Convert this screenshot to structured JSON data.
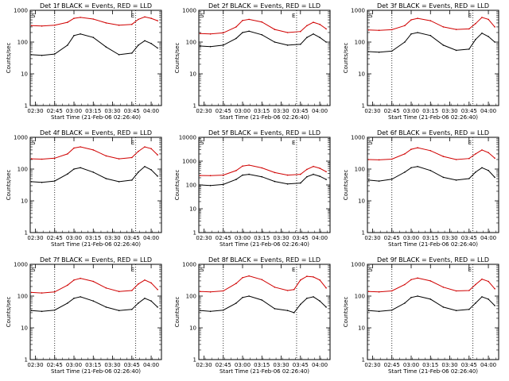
{
  "figure": {
    "shared": {
      "x_tick_labels": [
        "02:30",
        "02:45",
        "03:00",
        "03:15",
        "03:30",
        "03:45",
        "04:00"
      ],
      "y_tick_labels": [
        "1",
        "10",
        "100",
        "1000"
      ],
      "ylabel": "Counts/sec",
      "xlabel": "Start Time (21-Feb-06 02:26:40)",
      "marker_s": "S",
      "marker_e": "E",
      "colors": {
        "events": "#000000",
        "lld": "#d00000"
      }
    }
  },
  "chart_data": [
    {
      "type": "line",
      "title": "Det 1f BLACK = Events, RED = LLD",
      "xlabel": "Start Time (21-Feb-06 02:26:40)",
      "ylabel": "Counts/sec",
      "x_ticks": [
        "02:30",
        "02:45",
        "03:00",
        "03:15",
        "03:30",
        "03:45",
        "04:00"
      ],
      "yscale": "log",
      "ylim": [
        1,
        1000
      ],
      "x": [
        "02:27",
        "02:35",
        "02:45",
        "02:55",
        "03:00",
        "03:05",
        "03:15",
        "03:25",
        "03:35",
        "03:45",
        "03:50",
        "03:55",
        "04:00",
        "04:05"
      ],
      "series": [
        {
          "name": "BLACK = Events",
          "values": [
            40,
            38,
            42,
            80,
            160,
            180,
            140,
            70,
            40,
            45,
            80,
            110,
            90,
            65
          ]
        },
        {
          "name": "RED = LLD",
          "values": [
            330,
            320,
            340,
            420,
            560,
            600,
            530,
            400,
            340,
            360,
            520,
            620,
            560,
            470
          ]
        }
      ],
      "vlines": [
        "02:45",
        "03:48"
      ],
      "markers": [
        "S",
        "E"
      ]
    },
    {
      "type": "line",
      "title": "Det 2f BLACK = Events, RED = LLD",
      "xlabel": "Start Time (21-Feb-06 02:26:40)",
      "ylabel": "Counts/sec",
      "x_ticks": [
        "02:30",
        "02:45",
        "03:00",
        "03:15",
        "03:30",
        "03:45",
        "04:00"
      ],
      "yscale": "log",
      "ylim": [
        1,
        1000
      ],
      "x": [
        "02:27",
        "02:35",
        "02:45",
        "02:55",
        "03:00",
        "03:05",
        "03:15",
        "03:25",
        "03:35",
        "03:45",
        "03:50",
        "03:55",
        "04:00",
        "04:05"
      ],
      "series": [
        {
          "name": "BLACK = Events",
          "values": [
            75,
            72,
            80,
            130,
            200,
            220,
            170,
            100,
            80,
            85,
            140,
            180,
            140,
            100
          ]
        },
        {
          "name": "RED = LLD",
          "values": [
            185,
            180,
            195,
            300,
            480,
            520,
            430,
            250,
            200,
            215,
            330,
            420,
            360,
            260
          ]
        }
      ],
      "vlines": [
        "02:45",
        "03:42"
      ],
      "markers": [
        "S",
        "E"
      ]
    },
    {
      "type": "line",
      "title": "Det 3f BLACK = Events, RED = LLD",
      "xlabel": "Start Time (21-Feb-06 02:26:40)",
      "ylabel": "Counts/sec",
      "x_ticks": [
        "02:30",
        "02:45",
        "03:00",
        "03:15",
        "03:30",
        "03:45",
        "04:00"
      ],
      "yscale": "log",
      "ylim": [
        1,
        1000
      ],
      "x": [
        "02:27",
        "02:35",
        "02:45",
        "02:55",
        "03:00",
        "03:05",
        "03:15",
        "03:25",
        "03:35",
        "03:45",
        "03:50",
        "03:55",
        "04:00",
        "04:05"
      ],
      "series": [
        {
          "name": "BLACK = Events",
          "values": [
            50,
            48,
            52,
            100,
            180,
            200,
            160,
            80,
            55,
            60,
            120,
            190,
            150,
            100
          ]
        },
        {
          "name": "RED = LLD",
          "values": [
            240,
            235,
            245,
            330,
            500,
            560,
            470,
            300,
            250,
            260,
            380,
            600,
            520,
            300
          ]
        }
      ],
      "vlines": [
        "02:45",
        "03:48"
      ],
      "markers": [
        "S",
        "E"
      ]
    },
    {
      "type": "line",
      "title": "Det 4f BLACK = Events, RED = LLD",
      "xlabel": "Start Time (21-Feb-06 02:26:40)",
      "ylabel": "Counts/sec",
      "x_ticks": [
        "02:30",
        "02:45",
        "03:00",
        "03:15",
        "03:30",
        "03:45",
        "04:00"
      ],
      "yscale": "log",
      "ylim": [
        1,
        1000
      ],
      "x": [
        "02:27",
        "02:35",
        "02:45",
        "02:55",
        "03:00",
        "03:05",
        "03:15",
        "03:25",
        "03:35",
        "03:45",
        "03:50",
        "03:55",
        "04:00",
        "04:05"
      ],
      "series": [
        {
          "name": "BLACK = Events",
          "values": [
            40,
            38,
            42,
            70,
            100,
            110,
            80,
            50,
            40,
            45,
            80,
            120,
            95,
            60
          ]
        },
        {
          "name": "RED = LLD",
          "values": [
            210,
            205,
            220,
            300,
            460,
            500,
            400,
            260,
            210,
            230,
            360,
            500,
            440,
            280
          ]
        }
      ],
      "vlines": [
        "02:45",
        "03:48"
      ],
      "markers": [
        "S",
        "E"
      ]
    },
    {
      "type": "line",
      "title": "Det 5f BLACK = Events, RED = LLD",
      "xlabel": "Start Time (21-Feb-06 02:26:40)",
      "ylabel": "Counts/sec",
      "x_ticks": [
        "02:30",
        "02:45",
        "03:00",
        "03:15",
        "03:30",
        "03:45",
        "04:00"
      ],
      "yscale": "log",
      "ylim": [
        1,
        10000
      ],
      "x": [
        "02:27",
        "02:35",
        "02:45",
        "02:55",
        "03:00",
        "03:05",
        "03:15",
        "03:25",
        "03:35",
        "03:45",
        "03:50",
        "03:55",
        "04:00",
        "04:05"
      ],
      "series": [
        {
          "name": "BLACK = Events",
          "values": [
            100,
            95,
            105,
            170,
            260,
            280,
            220,
            140,
            110,
            120,
            220,
            280,
            230,
            170
          ]
        },
        {
          "name": "RED = LLD",
          "values": [
            250,
            245,
            260,
            400,
            620,
            680,
            520,
            330,
            260,
            280,
            450,
            600,
            500,
            360
          ]
        }
      ],
      "vlines": [
        "02:45",
        "03:42"
      ],
      "markers": [
        "S",
        "E"
      ]
    },
    {
      "type": "line",
      "title": "Det 6f BLACK = Events, RED = LLD",
      "xlabel": "Start Time (21-Feb-06 02:26:40)",
      "ylabel": "Counts/sec",
      "x_ticks": [
        "02:30",
        "02:45",
        "03:00",
        "03:15",
        "03:30",
        "03:45",
        "04:00"
      ],
      "yscale": "log",
      "ylim": [
        1,
        1000
      ],
      "x": [
        "02:27",
        "02:35",
        "02:45",
        "02:55",
        "03:00",
        "03:05",
        "03:15",
        "03:25",
        "03:35",
        "03:45",
        "03:50",
        "03:55",
        "04:00",
        "04:05"
      ],
      "series": [
        {
          "name": "BLACK = Events",
          "values": [
            45,
            42,
            48,
            80,
            110,
            120,
            90,
            55,
            45,
            50,
            80,
            110,
            90,
            55
          ]
        },
        {
          "name": "RED = LLD",
          "values": [
            200,
            195,
            205,
            300,
            420,
            470,
            380,
            250,
            200,
            215,
            300,
            400,
            330,
            220
          ]
        }
      ],
      "vlines": [
        "02:45",
        "03:48"
      ],
      "markers": [
        "S",
        "E"
      ]
    },
    {
      "type": "line",
      "title": "Det 7f BLACK = Events, RED = LLD",
      "xlabel": "Start Time (21-Feb-06 02:26:40)",
      "ylabel": "Counts/sec",
      "x_ticks": [
        "02:30",
        "02:45",
        "03:00",
        "03:15",
        "03:30",
        "03:45",
        "04:00"
      ],
      "yscale": "log",
      "ylim": [
        1,
        1000
      ],
      "x": [
        "02:27",
        "02:35",
        "02:45",
        "02:55",
        "03:00",
        "03:05",
        "03:15",
        "03:25",
        "03:35",
        "03:45",
        "03:50",
        "03:55",
        "04:00",
        "04:05"
      ],
      "series": [
        {
          "name": "BLACK = Events",
          "values": [
            35,
            33,
            36,
            60,
            85,
            95,
            70,
            45,
            35,
            38,
            60,
            85,
            70,
            45
          ]
        },
        {
          "name": "RED = LLD",
          "values": [
            130,
            125,
            135,
            220,
            320,
            360,
            290,
            180,
            140,
            150,
            240,
            320,
            260,
            160
          ]
        }
      ],
      "vlines": [
        "02:45",
        "03:48"
      ],
      "markers": [
        "S",
        "E"
      ]
    },
    {
      "type": "line",
      "title": "Det 8f BLACK = Events, RED = LLD",
      "xlabel": "Start Time (21-Feb-06 02:26:40)",
      "ylabel": "Counts/sec",
      "x_ticks": [
        "02:30",
        "02:45",
        "03:00",
        "03:15",
        "03:30",
        "03:45",
        "04:00"
      ],
      "yscale": "log",
      "ylim": [
        1,
        1000
      ],
      "x": [
        "02:27",
        "02:35",
        "02:45",
        "02:55",
        "03:00",
        "03:05",
        "03:15",
        "03:25",
        "03:35",
        "03:40",
        "03:45",
        "03:50",
        "03:55",
        "04:00",
        "04:05"
      ],
      "series": [
        {
          "name": "BLACK = Events",
          "values": [
            35,
            33,
            36,
            60,
            90,
            100,
            75,
            40,
            35,
            30,
            55,
            85,
            95,
            70,
            45
          ]
        },
        {
          "name": "RED = LLD",
          "values": [
            140,
            135,
            145,
            250,
            380,
            430,
            330,
            190,
            150,
            160,
            320,
            420,
            400,
            320,
            180
          ]
        }
      ],
      "vlines": [
        "02:45",
        "03:42"
      ],
      "markers": [
        "S",
        "E"
      ]
    },
    {
      "type": "line",
      "title": "Det 9f BLACK = Events, RED = LLD",
      "xlabel": "Start Time (21-Feb-06 02:26:40)",
      "ylabel": "Counts/sec",
      "x_ticks": [
        "02:30",
        "02:45",
        "03:00",
        "03:15",
        "03:30",
        "03:45",
        "04:00"
      ],
      "yscale": "log",
      "ylim": [
        1,
        1000
      ],
      "x": [
        "02:27",
        "02:35",
        "02:45",
        "02:55",
        "03:00",
        "03:05",
        "03:15",
        "03:25",
        "03:35",
        "03:45",
        "03:50",
        "03:55",
        "04:00",
        "04:05"
      ],
      "series": [
        {
          "name": "BLACK = Events",
          "values": [
            35,
            33,
            36,
            60,
            90,
            100,
            80,
            45,
            35,
            38,
            60,
            95,
            80,
            50
          ]
        },
        {
          "name": "RED = LLD",
          "values": [
            140,
            135,
            145,
            230,
            330,
            370,
            300,
            190,
            145,
            150,
            230,
            340,
            290,
            170
          ]
        }
      ],
      "vlines": [
        "02:45",
        "03:48"
      ],
      "markers": [
        "S",
        "E"
      ]
    }
  ]
}
